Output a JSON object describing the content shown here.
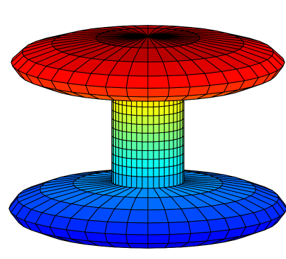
{
  "chart_data": {
    "type": "surface",
    "colormap": "jet",
    "colormap_stops": [
      "#00007f",
      "#0000ff",
      "#007fff",
      "#00ffff",
      "#7fff7f",
      "#ffff00",
      "#ff7f00",
      "#ff0000",
      "#7f0000"
    ],
    "edge_color": "#000000",
    "background": "#ffffff",
    "grid": false,
    "axes_visible": false,
    "legend": "none",
    "title": "",
    "xlabel": "",
    "ylabel": "",
    "zlabel": "",
    "shape": "surface of revolution: flanged spool (wide top disc, narrow waist cylinder, wide bottom disc)",
    "angular_segments": 40,
    "profile_rings": {
      "bottom_flange": 8,
      "waist": 10,
      "top_flange": 8
    },
    "relative_radius": {
      "flange_max": 1.0,
      "waist": 0.26
    },
    "z_range": [
      0,
      1
    ]
  }
}
